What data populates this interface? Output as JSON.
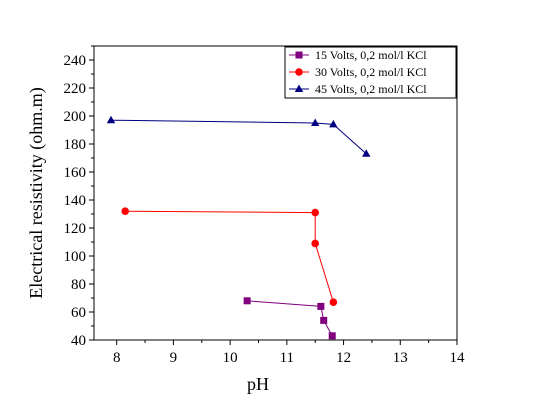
{
  "chart_data": {
    "type": "line",
    "title": "",
    "xlabel": "pH",
    "ylabel": "Electrical resistivity (ohm.m)",
    "xlim": [
      7.6,
      14
    ],
    "ylim": [
      40,
      250
    ],
    "x_ticks": [
      "8",
      "9",
      "10",
      "11",
      "12",
      "13",
      "14"
    ],
    "y_ticks": [
      "40",
      "60",
      "80",
      "100",
      "120",
      "140",
      "160",
      "180",
      "200",
      "220",
      "240"
    ],
    "grid": false,
    "legend_position": "top-right",
    "series": [
      {
        "name": "15 Volts, 0,2 mol/l KCl",
        "color": "#800080",
        "marker": "square",
        "points": [
          [
            10.3,
            68
          ],
          [
            11.6,
            64
          ],
          [
            11.65,
            54
          ],
          [
            11.8,
            43
          ]
        ]
      },
      {
        "name": "30 Volts, 0,2 mol/l KCl",
        "color": "#ff0000",
        "marker": "circle",
        "points": [
          [
            8.15,
            132
          ],
          [
            11.5,
            131
          ],
          [
            11.5,
            109
          ],
          [
            11.82,
            67
          ]
        ]
      },
      {
        "name": "45 Volts, 0,2 mol/l KCl",
        "color": "#000080",
        "marker": "triangle",
        "points": [
          [
            7.9,
            197
          ],
          [
            11.5,
            195
          ],
          [
            11.82,
            194
          ],
          [
            12.4,
            173
          ]
        ]
      }
    ]
  }
}
